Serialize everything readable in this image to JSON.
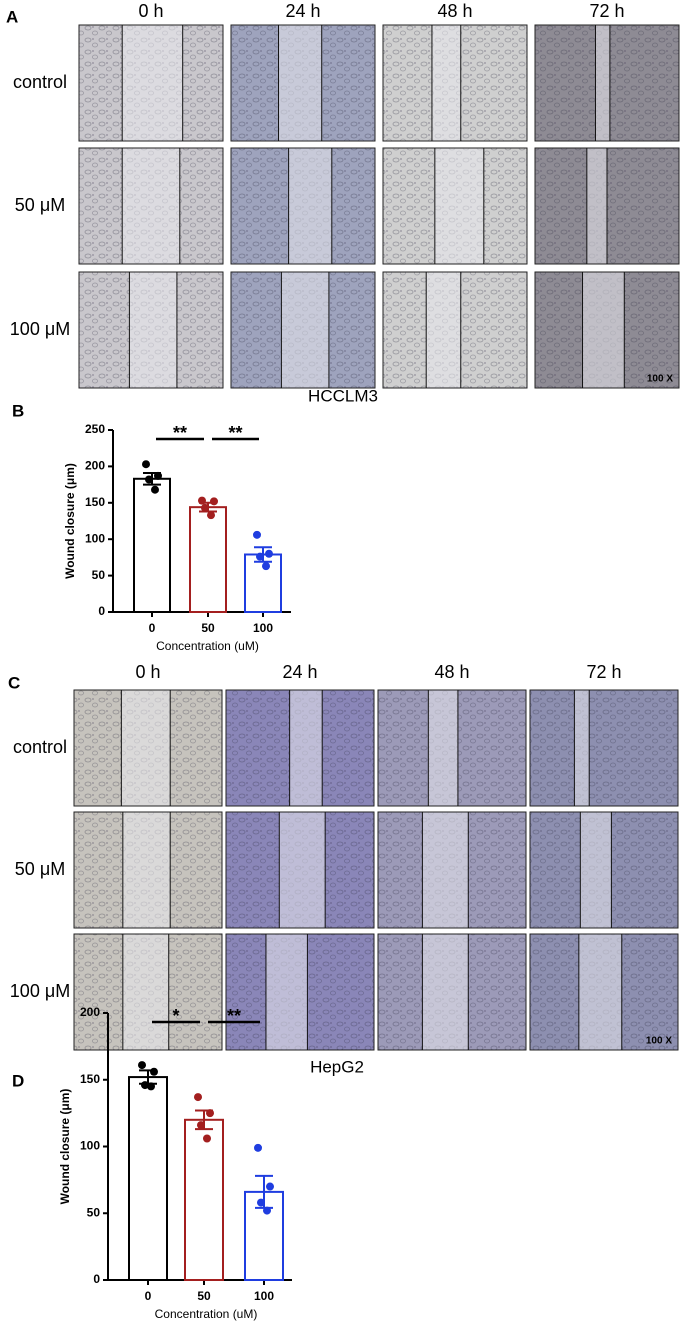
{
  "image_panels": [
    {
      "label": "A",
      "columns": [
        "0 h",
        "24 h",
        "48 h",
        "72 h"
      ],
      "rows": [
        "control",
        "50 μM",
        "100 μM"
      ],
      "magnification": "100 X",
      "cell_line": "HCCLM3"
    },
    {
      "label": "C",
      "columns": [
        "0 h",
        "24 h",
        "48 h",
        "72 h"
      ],
      "rows": [
        "control",
        "50 μM",
        "100 μM"
      ],
      "magnification": "100 X",
      "cell_line": "HepG2"
    }
  ],
  "chart_data": [
    {
      "type": "bar",
      "label": "B",
      "ylabel": "Wound closure (μm)",
      "xlabel": "Concentration (uM)",
      "categories": [
        "0",
        "50",
        "100"
      ],
      "values": [
        183,
        144,
        79
      ],
      "errors": [
        8,
        6,
        10
      ],
      "points": [
        [
          203,
          187,
          182,
          168
        ],
        [
          153,
          152,
          143,
          133
        ],
        [
          106,
          80,
          76,
          63
        ]
      ],
      "colors": [
        "#000000",
        "#a31f1f",
        "#1f3de0"
      ],
      "significance": [
        "**",
        "**"
      ],
      "ylim": [
        0,
        250
      ],
      "yticks": [
        0,
        50,
        100,
        150,
        200,
        250
      ]
    },
    {
      "type": "bar",
      "label": "D",
      "ylabel": "Wound closure (μm)",
      "xlabel": "Concentration (uM)",
      "categories": [
        "0",
        "50",
        "100"
      ],
      "values": [
        152,
        120,
        66
      ],
      "errors": [
        5,
        7,
        12
      ],
      "points": [
        [
          161,
          156,
          146,
          145
        ],
        [
          137,
          125,
          116,
          106
        ],
        [
          99,
          70,
          58,
          52
        ]
      ],
      "colors": [
        "#000000",
        "#a31f1f",
        "#1f3de0"
      ],
      "significance": [
        "*",
        "**"
      ],
      "ylim": [
        0,
        200
      ],
      "yticks": [
        0,
        50,
        100,
        150,
        200
      ]
    }
  ]
}
